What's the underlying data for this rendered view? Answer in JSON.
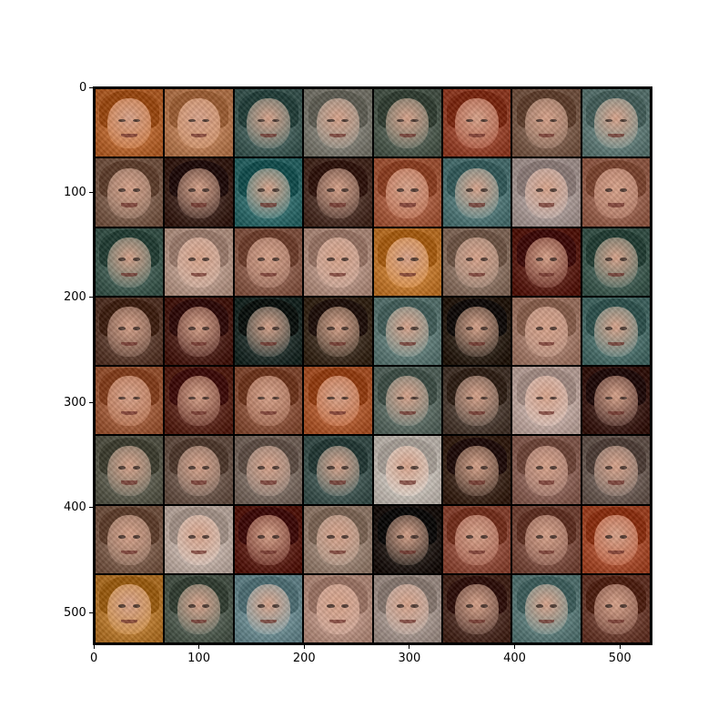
{
  "figure": {
    "image_content": "8x8 grid of generated face samples",
    "grid": {
      "rows": 8,
      "cols": 8
    },
    "axes": {
      "x_ticks": [
        "0",
        "100",
        "200",
        "300",
        "400",
        "500"
      ],
      "y_ticks": [
        "0",
        "100",
        "200",
        "300",
        "400",
        "500"
      ],
      "x_tick_values": [
        0,
        100,
        200,
        300,
        400,
        500
      ],
      "y_tick_values": [
        0,
        100,
        200,
        300,
        400,
        500
      ],
      "x_range": [
        0,
        530
      ],
      "y_range": [
        530,
        0
      ]
    },
    "palette": {
      "frame": "#000000",
      "background": "#ffffff",
      "tile_tones": [
        [
          "#c8743c",
          "#c98a60",
          "#4f6b66",
          "#8c8a80",
          "#5d6a5e",
          "#a8523a",
          "#8a6a58",
          "#6f8a86"
        ],
        [
          "#8a6a58",
          "#4a3028",
          "#3e7a7a",
          "#5a3e34",
          "#b86a4c",
          "#5f8686",
          "#b8a8a4",
          "#a8705c"
        ],
        [
          "#4e6a60",
          "#c8a898",
          "#9a6a58",
          "#c4a090",
          "#d4883c",
          "#9a8070",
          "#6a2c22",
          "#4e6a60"
        ],
        [
          "#6a4a3c",
          "#5a2c24",
          "#2e3c38",
          "#4a3a2c",
          "#6e8a86",
          "#3a2e24",
          "#b48a78",
          "#5a7e7a"
        ],
        [
          "#b06a48",
          "#6a3428",
          "#9a6048",
          "#c0683c",
          "#6a7a72",
          "#5a4a40",
          "#d0b8b0",
          "#4a2a24"
        ],
        [
          "#6a6a5c",
          "#7a6458",
          "#8a7a70",
          "#4e6460",
          "#d4ccc4",
          "#4a3428",
          "#9a7064",
          "#7a6a62"
        ],
        [
          "#8a6a58",
          "#d0beb4",
          "#6a2c22",
          "#a89080",
          "#2e2620",
          "#a05a48",
          "#8a5a4c",
          "#b85a3a"
        ],
        [
          "#c8883c",
          "#5e6a5e",
          "#7a9aa0",
          "#c8a090",
          "#b4a49c",
          "#5a3a30",
          "#6a8a88",
          "#7a4a3c"
        ]
      ]
    }
  }
}
